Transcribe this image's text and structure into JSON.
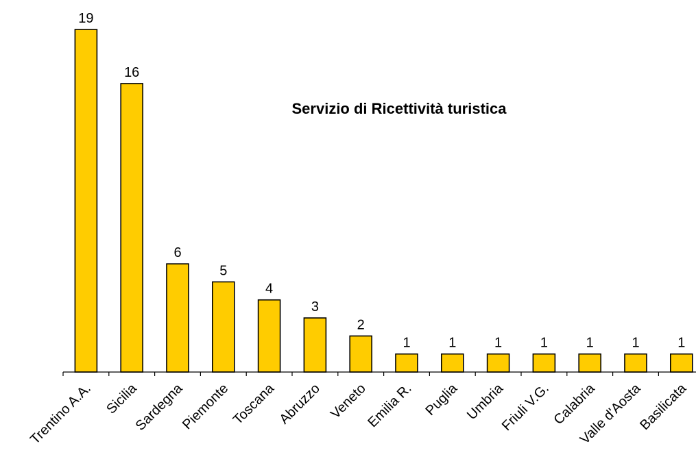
{
  "chart_data": {
    "type": "bar",
    "title": "Servizio di Ricettività turistica",
    "xlabel": "",
    "ylabel": "",
    "categories": [
      "Trentino A.A.",
      "Sicilia",
      "Sardegna",
      "Piemonte",
      "Toscana",
      "Abruzzo",
      "Veneto",
      "Emilia R.",
      "Puglia",
      "Umbria",
      "Friuli V.G.",
      "Calabria",
      "Valle d'Aosta",
      "Basilicata"
    ],
    "values": [
      19,
      16,
      6,
      5,
      4,
      3,
      2,
      1,
      1,
      1,
      1,
      1,
      1,
      1
    ],
    "ylim": [
      0,
      19
    ],
    "grid": false,
    "legend": "none",
    "colors": {
      "bar_fill": "#FFCC00",
      "bar_stroke": "#000000"
    }
  }
}
